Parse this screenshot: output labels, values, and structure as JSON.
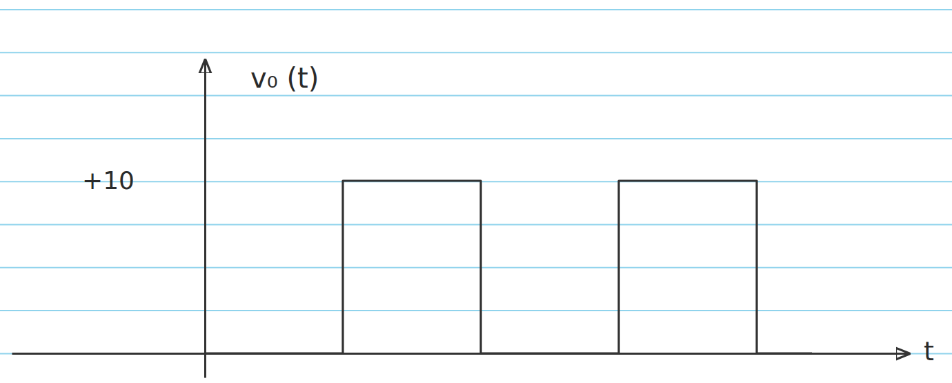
{
  "chart_data": {
    "type": "line",
    "y_label": "v₀ (t)",
    "x_label": "t",
    "x": [
      0,
      1,
      1,
      2,
      2,
      3,
      3,
      4,
      4,
      4.4
    ],
    "values": [
      0,
      0,
      10,
      10,
      0,
      0,
      10,
      10,
      0,
      0
    ],
    "color": "#333333",
    "line_style": "solid",
    "xlim": [
      -1.4,
      5.1
    ],
    "xticks": [],
    "ylim": [
      -1.4,
      17
    ],
    "yticks": [
      {
        "value": 10,
        "label": "+10"
      }
    ],
    "tick_labels": "y"
  }
}
